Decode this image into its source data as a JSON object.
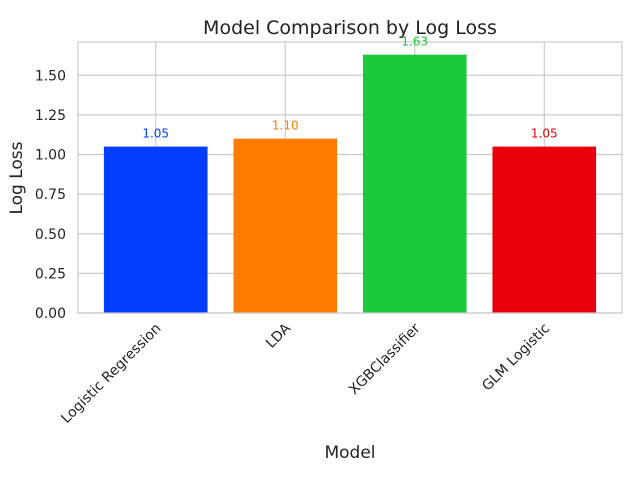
{
  "chart_data": {
    "type": "bar",
    "title": "Model Comparison by Log Loss",
    "xlabel": "Model",
    "ylabel": "Log Loss",
    "categories": [
      "Logistic Regression",
      "LDA",
      "XGBClassifier",
      "GLM Logistic"
    ],
    "values": [
      1.05,
      1.1,
      1.63,
      1.05
    ],
    "data_labels": [
      "1.05",
      "1.10",
      "1.63",
      "1.05"
    ],
    "colors": [
      "#023eff",
      "#ff7c00",
      "#1ac938",
      "#e8000b"
    ],
    "ylim": [
      0,
      1.71
    ],
    "yticks": [
      0.0,
      0.25,
      0.5,
      0.75,
      1.0,
      1.25,
      1.5
    ],
    "ytick_labels": [
      "0.00",
      "0.25",
      "0.50",
      "0.75",
      "1.00",
      "1.25",
      "1.50"
    ],
    "grid": true,
    "legend": "none"
  }
}
